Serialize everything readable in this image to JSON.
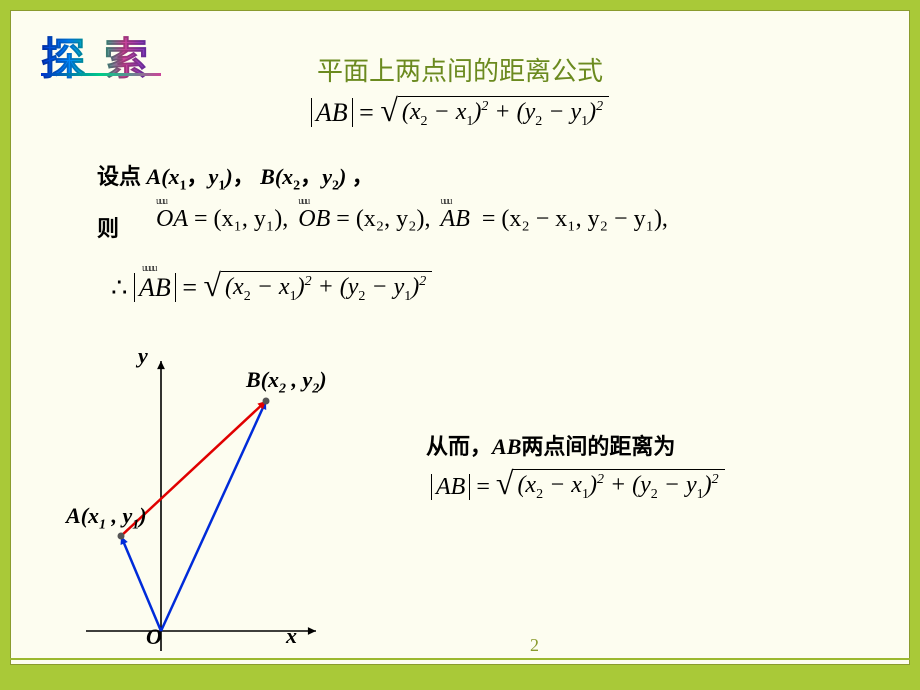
{
  "ornament": {
    "text": "探 索"
  },
  "heading": "平面上两点间的距离公式",
  "formula_main": {
    "lhs": "AB",
    "rhs_terms": [
      "x",
      "x",
      "y",
      "y"
    ],
    "rhs_subs": [
      "2",
      "1",
      "2",
      "1"
    ]
  },
  "line_setpoints": {
    "prefix": "设点 ",
    "A_label": "A",
    "A_coords": [
      "x",
      "1",
      "y",
      "1"
    ],
    "B_label": "B",
    "B_coords": [
      "x",
      "2",
      "y",
      "2"
    ],
    "suffix": " ，"
  },
  "line_then": "则",
  "vectors": {
    "OA": {
      "name": "OA",
      "coords": "(x₁, y₁),",
      "arrow": "⟶"
    },
    "OB": {
      "name": "OB",
      "coords": "(x₂, y₂),",
      "arrow": "⟶"
    },
    "AB": {
      "name": "AB",
      "coords": "(x₂ − x₁, y₂ − y₁),",
      "arrow": "⟶"
    }
  },
  "therefore_sym": "∴",
  "graph": {
    "x_label": "x",
    "y_label": "y",
    "origin_label": "O",
    "A_label": "A(x₁ , y₁)",
    "B_label": "B(x₂ , y₂)",
    "colors": {
      "axis": "#000000",
      "vec_OA": "#002bd9",
      "vec_OB": "#002bd9",
      "vec_AB": "#e00000",
      "point": "#555555"
    },
    "coords": {
      "O": [
        95,
        280
      ],
      "A": [
        55,
        185
      ],
      "B": [
        200,
        50
      ],
      "x_end": [
        250,
        280
      ],
      "y_end": [
        95,
        10
      ]
    },
    "line_width": 2.5,
    "arrow_size": 9
  },
  "conclusion": {
    "prefix": "从而，",
    "mid": "AB",
    "suffix": "两点间的距离为"
  },
  "page_number": "2",
  "styling": {
    "bg_outer": "#a9c938",
    "bg_inner": "#fdfdf0",
    "heading_color": "#6b8a1f",
    "text_color": "#000000",
    "font_main": "SimSun",
    "font_math": "Times New Roman",
    "heading_fontsize": 26,
    "body_fontsize": 22,
    "math_fontsize": 24
  }
}
